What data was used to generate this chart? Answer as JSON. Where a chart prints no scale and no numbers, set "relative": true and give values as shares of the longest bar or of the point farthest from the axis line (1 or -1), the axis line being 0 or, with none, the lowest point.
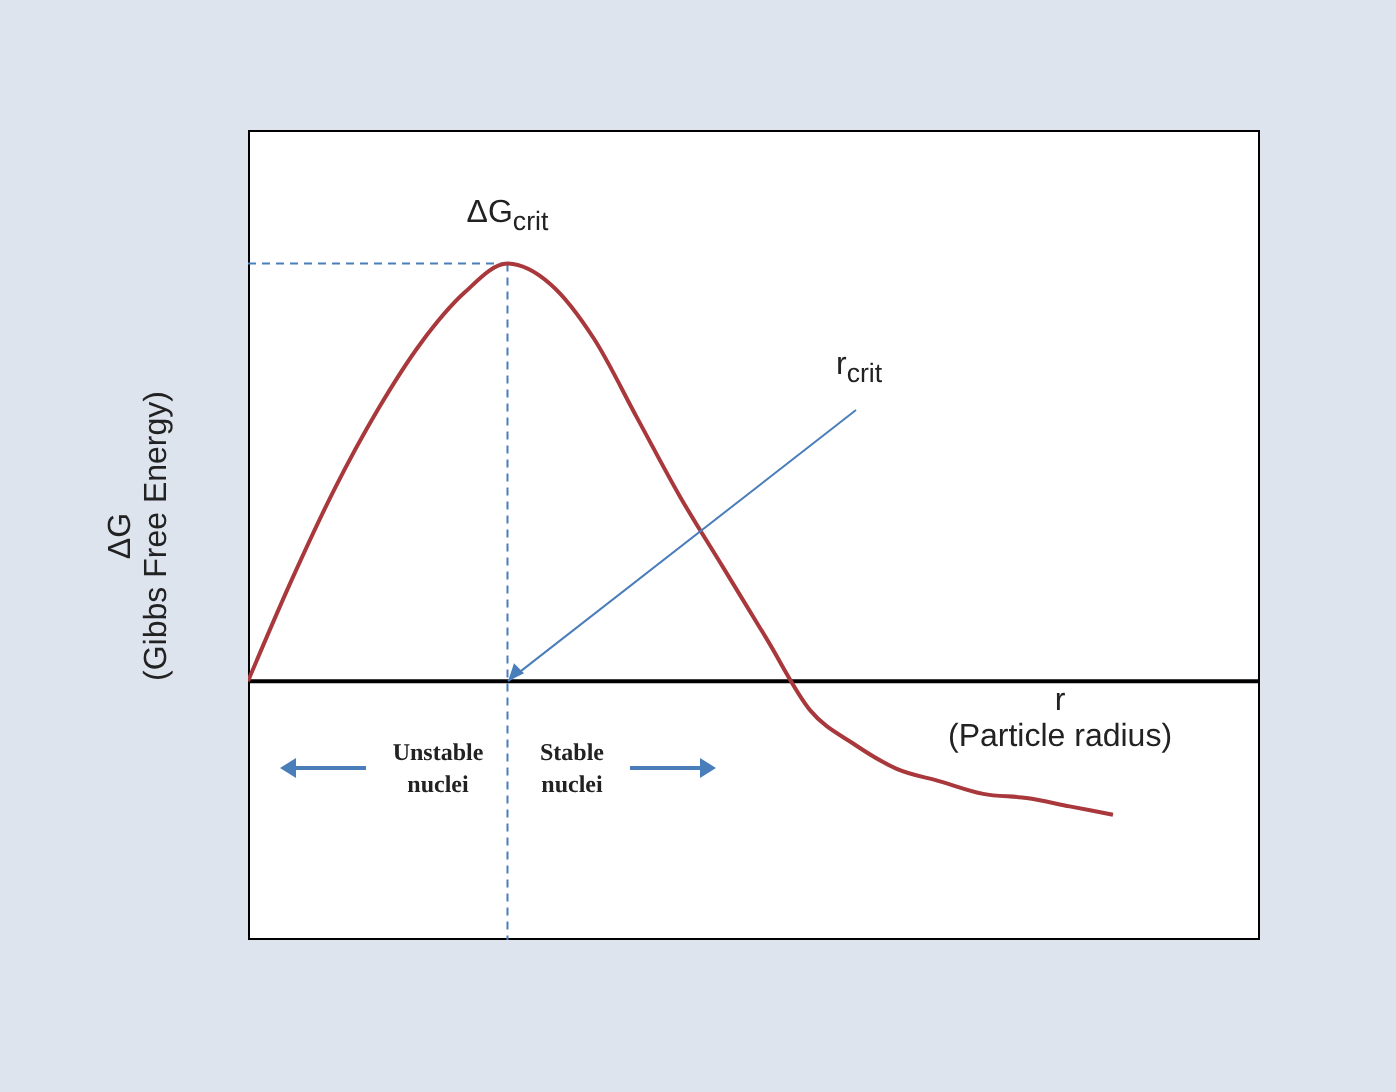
{
  "chart_data": {
    "type": "line",
    "relative": true,
    "xlabel": "r\n(Particle radius)",
    "ylabel": "ΔG\n(Gibbs Free Energy)",
    "categories": [
      null,
      null,
      null,
      null,
      null,
      null,
      null,
      null,
      null,
      null,
      null,
      null,
      null,
      null,
      null,
      null,
      null,
      null,
      null,
      null,
      null
    ],
    "series": [
      {
        "color": "#a8383b",
        "values": [
          0,
          0.24,
          0.46,
          0.65,
          0.81,
          0.93,
          1,
          0.95,
          0.82,
          0.63,
          0.44,
          0.27,
          0.1,
          -0.07,
          -0.15,
          -0.21,
          -0.24,
          -0.27,
          -0.28,
          -0.3,
          -0.32
        ]
      }
    ],
    "ref_lines": [
      {
        "axis": "y",
        "value": 1,
        "color": "#4a7ebb",
        "line_style": "dashed"
      }
    ],
    "annotations": [
      {
        "text": "ΔG$_{crit}$",
        "y": 1
      },
      "r$_{crit}$",
      "Unstable\nnuclei",
      "Stable\nnuclei"
    ],
    "marker": "none",
    "line_style": "solid"
  }
}
